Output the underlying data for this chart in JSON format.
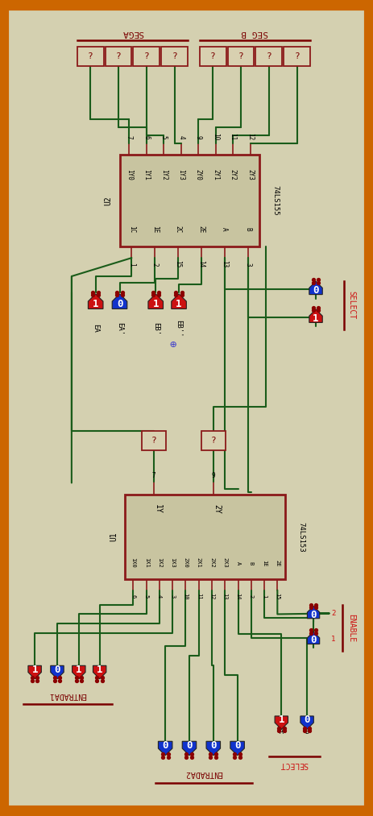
{
  "bg_color": "#d4d0b0",
  "border_color": "#cc6600",
  "wire_color": "#1a5c1a",
  "ic_border": "#8b1a1a",
  "ic_fill": "#c8c4a0",
  "red_btn": "#cc1111",
  "blue_btn": "#1133cc",
  "dark_red_text": "#7a0000",
  "pin_color": "#8b1a1a",
  "figsize": [
    4.63,
    10.13
  ],
  "dpi": 100,
  "sega_label": "SEGA",
  "segb_label": "SEG B",
  "u2_label": "U2",
  "u2_ic_label": "74LS155",
  "u1_label": "U1",
  "u1_ic_label": "74LS153",
  "select_label": "SELECT",
  "enable_label": "ENABLE",
  "entrada1_label": "ENTRADA1",
  "entrada2_label": "ENTRADA2",
  "ea_label": "EA",
  "ea2_label": "EA'",
  "eb_label": "EB'",
  "eb2_label": "EB''",
  "cross_symbol": "⊕"
}
